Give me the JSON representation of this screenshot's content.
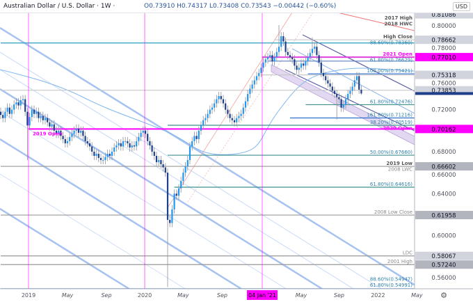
{
  "header": {
    "title": "Australian Dollar / U.S. Dollar · 1W ·",
    "ohlc": "O0.73910 H0.74317 L0.73408 C0.73543 −0.00442 (−0.60%)",
    "currency": "USD"
  },
  "chart_data": {
    "type": "candlestick",
    "symbol": "AUD/USD",
    "interval": "1W",
    "ylim": [
      0.545,
      0.812
    ],
    "y_ticks": [
      "0.80000",
      "0.78000",
      "0.76000",
      "0.72000",
      "0.68000",
      "0.66000",
      "0.64000",
      "0.60000",
      "0.56000"
    ],
    "x_ticks": [
      "2019",
      "May",
      "Sep",
      "2020",
      "May",
      "Sep",
      "04 Jan '21",
      "May",
      "Sep",
      "2022",
      "May"
    ],
    "x_tick_weeks": [
      12.5,
      30,
      47.5,
      64.7,
      82,
      99.5,
      117.5,
      135,
      152,
      169.5,
      187
    ],
    "last_candle": {
      "open": 0.7391,
      "high": 0.74317,
      "low": 0.73408,
      "close": 0.73543
    },
    "weekly_closes": [
      0.715,
      0.712,
      0.718,
      0.722,
      0.716,
      0.72,
      0.725,
      0.727,
      0.724,
      0.729,
      0.73,
      0.718,
      0.705,
      0.713,
      0.72,
      0.716,
      0.718,
      0.712,
      0.714,
      0.71,
      0.712,
      0.708,
      0.704,
      0.706,
      0.7,
      0.697,
      0.7,
      0.695,
      0.692,
      0.688,
      0.69,
      0.694,
      0.697,
      0.7,
      0.702,
      0.698,
      0.7,
      0.695,
      0.69,
      0.688,
      0.685,
      0.68,
      0.676,
      0.678,
      0.674,
      0.672,
      0.672,
      0.675,
      0.678,
      0.676,
      0.68,
      0.684,
      0.686,
      0.688,
      0.685,
      0.69,
      0.69,
      0.688,
      0.684,
      0.686,
      0.685,
      0.69,
      0.694,
      0.698,
      0.7,
      0.697,
      0.69,
      0.686,
      0.68,
      0.676,
      0.67,
      0.672,
      0.668,
      0.665,
      0.66,
      0.615,
      0.612,
      0.625,
      0.64,
      0.638,
      0.645,
      0.652,
      0.66,
      0.666,
      0.672,
      0.685,
      0.69,
      0.695,
      0.692,
      0.7,
      0.705,
      0.71,
      0.712,
      0.716,
      0.72,
      0.722,
      0.726,
      0.73,
      0.733,
      0.73,
      0.726,
      0.72,
      0.716,
      0.712,
      0.71,
      0.708,
      0.712,
      0.714,
      0.716,
      0.722,
      0.728,
      0.735,
      0.74,
      0.744,
      0.748,
      0.752,
      0.755,
      0.76,
      0.765,
      0.768,
      0.77,
      0.772,
      0.766,
      0.77,
      0.775,
      0.78,
      0.79,
      0.785,
      0.775,
      0.772,
      0.77,
      0.768,
      0.762,
      0.758,
      0.76,
      0.764,
      0.762,
      0.766,
      0.77,
      0.774,
      0.778,
      0.78,
      0.772,
      0.765,
      0.755,
      0.752,
      0.748,
      0.745,
      0.742,
      0.738,
      0.735,
      0.732,
      0.73,
      0.722,
      0.725,
      0.73,
      0.735,
      0.738,
      0.742,
      0.748,
      0.752,
      0.7391,
      0.73543
    ],
    "extremes": [
      {
        "week": 12,
        "low": 0.672
      },
      {
        "week": 75,
        "low": 0.551
      },
      {
        "week": 125,
        "high": 0.8007
      },
      {
        "week": 140,
        "high": 0.789
      },
      {
        "week": 151,
        "low": 0.7106
      },
      {
        "week": 161,
        "high": 0.7556
      }
    ],
    "price_boxes": [
      {
        "value": "0.81086",
        "price": 0.81086,
        "bg": "#d1d4dc",
        "fg": "#131722"
      },
      {
        "value": "0.78662",
        "price": 0.78662,
        "bg": "#d1d4dc",
        "fg": "#131722"
      },
      {
        "value": "0.77010",
        "price": 0.7701,
        "bg": "#ff00ff",
        "fg": "#000000"
      },
      {
        "value": "0.75318",
        "price": 0.75318,
        "bg": "#d1d4dc",
        "fg": "#131722"
      },
      {
        "value": "0.73853",
        "price": 0.73853,
        "bg": "#d1d4dc",
        "fg": "#131722"
      },
      {
        "value": "0.70162",
        "price": 0.70162,
        "bg": "#ff00ff",
        "fg": "#000000"
      },
      {
        "value": "0.66602",
        "price": 0.66602,
        "bg": "#b2b5be",
        "fg": "#131722"
      },
      {
        "value": "0.61958",
        "price": 0.61958,
        "bg": "#b2b5be",
        "fg": "#131722"
      },
      {
        "value": "0.58067",
        "price": 0.58067,
        "bg": "#d1d4dc",
        "fg": "#131722"
      },
      {
        "value": "0.57240",
        "price": 0.5724,
        "bg": "#b2b5be",
        "fg": "#131722"
      }
    ],
    "levels": [
      {
        "label": "2017 High",
        "price": 0.81086,
        "color": "#888888",
        "text": "#555555",
        "start_week": 0,
        "line": false
      },
      {
        "label": "2018 HWC",
        "price": 0.8055,
        "color": "#888888",
        "text": "#555555",
        "start_week": 0,
        "line": false
      },
      {
        "label": "High Close",
        "price": 0.78662,
        "color": "#c8c8c8",
        "text": "#555555",
        "start_week": 123
      },
      {
        "label": "88.60%(0.78360)",
        "price": 0.7836,
        "color": "#2a9fbf",
        "text": "#2a7fa8",
        "start_week": 0
      },
      {
        "label": "2021 Open",
        "price": 0.7701,
        "color": "#e040e0",
        "text": "#ff00ff",
        "start_week": 117.5,
        "bold": true
      },
      {
        "label": "61.80%(0.76629)",
        "price": 0.76629,
        "color": "#5d7fc0",
        "text": "#2a7fa8",
        "start_week": 120
      },
      {
        "label": "100.00%(0.75421)",
        "price": 0.75421,
        "color": "#2a6fd0",
        "text": "#2a7fa8",
        "start_week": 138
      },
      {
        "label": "",
        "price": 0.75318,
        "color": "#c8c8c8",
        "text": "#555555",
        "start_week": 117
      },
      {
        "label": "",
        "price": 0.73853,
        "color": "#c8c8c8",
        "text": "#555555",
        "start_week": 0
      },
      {
        "label": "61.80%(0.72476)",
        "price": 0.72476,
        "color": "#3f8f8f",
        "text": "#2a7fa8",
        "start_week": 137
      },
      {
        "label": "161.80%(0.71216)",
        "price": 0.71216,
        "color": "#2a6fd0",
        "text": "#2a7fa8",
        "start_week": 130
      },
      {
        "label": "38.20%(0.70519)",
        "price": 0.70519,
        "color": "#3f8f8f",
        "text": "#2a7fa8",
        "start_week": 75
      },
      {
        "label": "2020 Open",
        "price": 0.70162,
        "color": "#ff00ff",
        "text": "#ff00ff",
        "start_week": 64.7,
        "bold": true
      },
      {
        "label": "50.00%(0.67660)",
        "price": 0.6766,
        "color": "#3f8f8f",
        "text": "#2a7fa8",
        "start_week": 75
      },
      {
        "label": "2019 Low",
        "price": 0.66602,
        "color": "#999999",
        "text": "#555555",
        "start_week": 0
      },
      {
        "label": "2008 LWC",
        "price": 0.663,
        "color": "#cccccc",
        "text": "#888888",
        "start_week": 0,
        "line": false
      },
      {
        "label": "61.80%(0.64616)",
        "price": 0.64616,
        "color": "#3f8f8f",
        "text": "#2a7fa8",
        "start_week": 78
      },
      {
        "label": "2008 Low Close",
        "price": 0.61958,
        "color": "#999999",
        "text": "#888888",
        "start_week": 0
      },
      {
        "label": "LDC",
        "price": 0.58067,
        "color": "#999999",
        "text": "#888888",
        "start_week": 0
      },
      {
        "label": "2001 High",
        "price": 0.5724,
        "color": "#999999",
        "text": "#888888",
        "start_week": 0
      },
      {
        "label": "88.60%(0.54947)",
        "price": 0.54947,
        "color": "#2a6fd0",
        "text": "#2a7fa8",
        "start_week": 0
      },
      {
        "label": "61.80%(0.54991)",
        "price": 0.5482,
        "color": "#3f8f8f",
        "text": "#2a7fa8",
        "start_week": 0,
        "line": false
      }
    ],
    "segment_levels": [
      {
        "label": "2019 Open",
        "price": 0.70162,
        "color": "#ff00ff",
        "start_week": 12.5,
        "end_week": 64.7
      }
    ],
    "vertical_markers": [
      12.5,
      64.7,
      117.5
    ],
    "colors": {
      "bull": "#2196f3",
      "bear": "#1e3f8a",
      "wick": "#8a8f99",
      "marker": "#ff00ff",
      "channel": "#90b4ee",
      "pitchfork": "#5b5fa8",
      "trend_red": "#f07070",
      "ma": "#7fb7ee"
    }
  }
}
